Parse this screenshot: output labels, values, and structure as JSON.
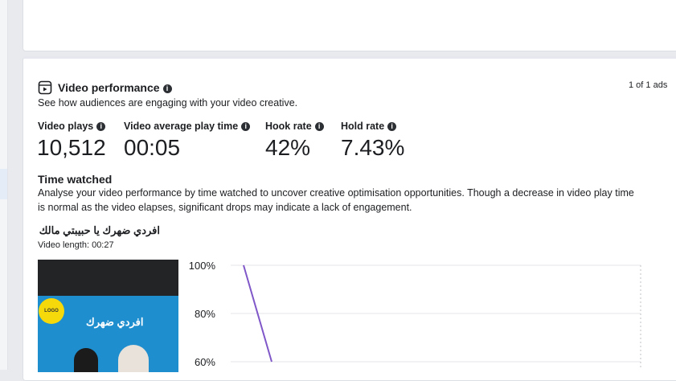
{
  "section": {
    "title": "Video performance",
    "subtitle": "See how audiences are engaging with your video creative.",
    "ad_count": "1 of 1 ads"
  },
  "metrics": [
    {
      "label": "Video plays",
      "value": "10,512"
    },
    {
      "label": "Video average play time",
      "value": "00:05"
    },
    {
      "label": "Hook rate",
      "value": "42%"
    },
    {
      "label": "Hold rate",
      "value": "7.43%"
    }
  ],
  "time_watched": {
    "title": "Time watched",
    "description_line1": "Analyse your video performance by time watched to uncover creative optimisation opportunities. Though a decrease in video play time",
    "description_line2": "is normal as the video elapses, significant drops may indicate a lack of engagement."
  },
  "video": {
    "name": "افردي ضهرك يا حبيبتي مالك",
    "length": "Video length: 00:27",
    "thumbnail_text": "افردي ضهرك"
  },
  "chart_data": {
    "type": "line",
    "y_ticks": [
      "100%",
      "80%",
      "60%"
    ],
    "ylim": [
      60,
      100
    ],
    "series": [
      {
        "color": "#7f57c8",
        "points": [
          {
            "y": 100
          },
          {
            "y": 60
          }
        ]
      }
    ]
  },
  "colors": {
    "accent_line": "#7f57c8",
    "grid": "#e4e6eb"
  }
}
